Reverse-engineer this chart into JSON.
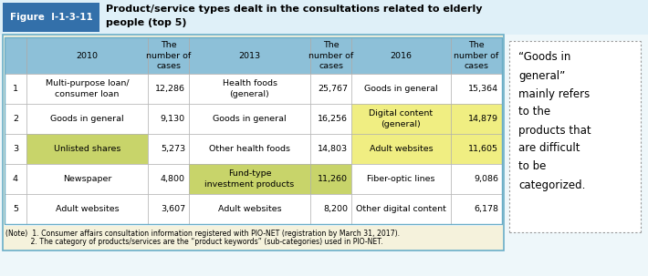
{
  "figure_label": "Figure  I-1-3-11",
  "title_line1": "Product/service types dealt in the consultations related to elderly",
  "title_line2": "people (top 5)",
  "header_row": [
    "",
    "2010",
    "The\nnumber of\ncases",
    "2013",
    "The\nnumber of\ncases",
    "2016",
    "The\nnumber of\ncases"
  ],
  "rows": [
    [
      "1",
      "Multi-purpose loan/\nconsumer loan",
      "12,286",
      "Health foods\n(general)",
      "25,767",
      "Goods in general",
      "15,364"
    ],
    [
      "2",
      "Goods in general",
      "9,130",
      "Goods in general",
      "16,256",
      "Digital content\n(general)",
      "14,879"
    ],
    [
      "3",
      "Unlisted shares",
      "5,273",
      "Other health foods",
      "14,803",
      "Adult websites",
      "11,605"
    ],
    [
      "4",
      "Newspaper",
      "4,800",
      "Fund-type\ninvestment products",
      "11,260",
      "Fiber-optic lines",
      "9,086"
    ],
    [
      "5",
      "Adult websites",
      "3,607",
      "Adult websites",
      "8,200",
      "Other digital content",
      "6,178"
    ]
  ],
  "note_line1": "(Note)  1. Consumer affairs consultation information registered with PIO-NET (registration by March 31, 2017).",
  "note_line2": "           2. The category of products/services are the “product keywords” (sub-categories) used in PIO-NET.",
  "side_note_lines": [
    "“Goods in",
    "general”",
    "mainly refers",
    "to the",
    "products that",
    "are difficult",
    "to be",
    "categorized."
  ],
  "header_bg": "#8DC0D8",
  "row_bg_white": "#FFFFFF",
  "highlight_green": "#C8D46A",
  "highlight_yellow": "#F0EE82",
  "outer_border_color": "#6AAEC8",
  "outer_bg": "#EEF7FA",
  "page_bg": "#EEF7FA",
  "title_bg": "#EEF7FA",
  "fig_label_bg": "#3370AA",
  "fig_label_fg": "#FFFFFF",
  "title_fg": "#000000",
  "grid_color": "#AAAAAA",
  "note_bg": "#F8F5E0",
  "side_note_border": "#999999"
}
